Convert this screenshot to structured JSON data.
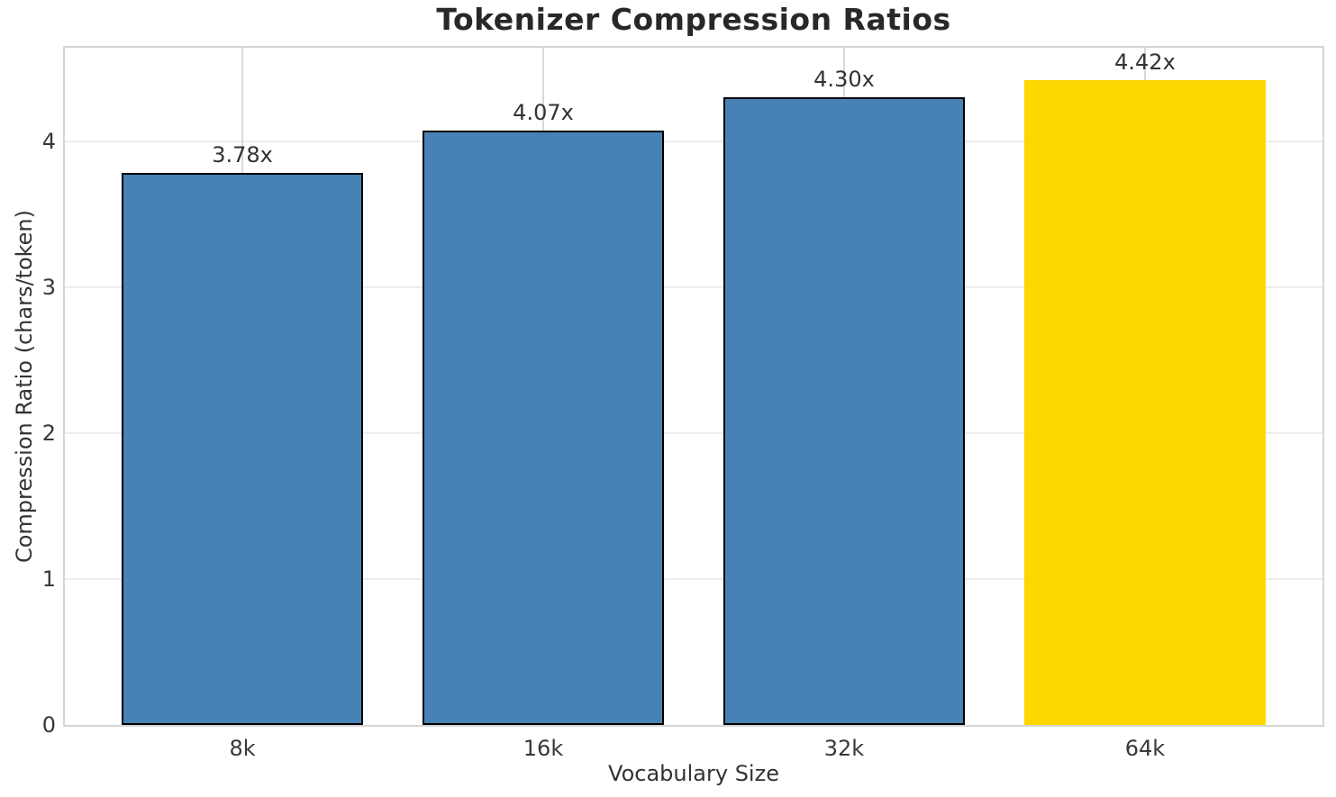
{
  "chart_data": {
    "type": "bar",
    "title": "Tokenizer Compression Ratios",
    "xlabel": "Vocabulary Size",
    "ylabel": "Compression Ratio (chars/token)",
    "categories": [
      "8k",
      "16k",
      "32k",
      "64k"
    ],
    "values": [
      3.78,
      4.07,
      4.3,
      4.42
    ],
    "bar_labels": [
      "3.78x",
      "4.07x",
      "4.30x",
      "4.42x"
    ],
    "bar_colors": [
      "#4682B4",
      "#4682B4",
      "#4682B4",
      "#FFD700"
    ],
    "bar_edge_colors": [
      "#000000",
      "#000000",
      "#000000",
      "none"
    ],
    "highlighted_category": "64k",
    "yticks": [
      0,
      1,
      2,
      3,
      4
    ],
    "ylim": [
      0,
      4.64
    ],
    "bar_width_fraction": 0.8,
    "grid": true,
    "legend_position": "none",
    "colors": {
      "bar_default": "#4682B4",
      "bar_highlight": "#FFD700",
      "bar_edge": "#000000",
      "title_text": "#282828",
      "tick_text": "#383838",
      "spine": "#d5d5d5",
      "grid_horizontal": "#ececec",
      "grid_vertical": "#d9d9d9",
      "background": "#ffffff"
    }
  }
}
